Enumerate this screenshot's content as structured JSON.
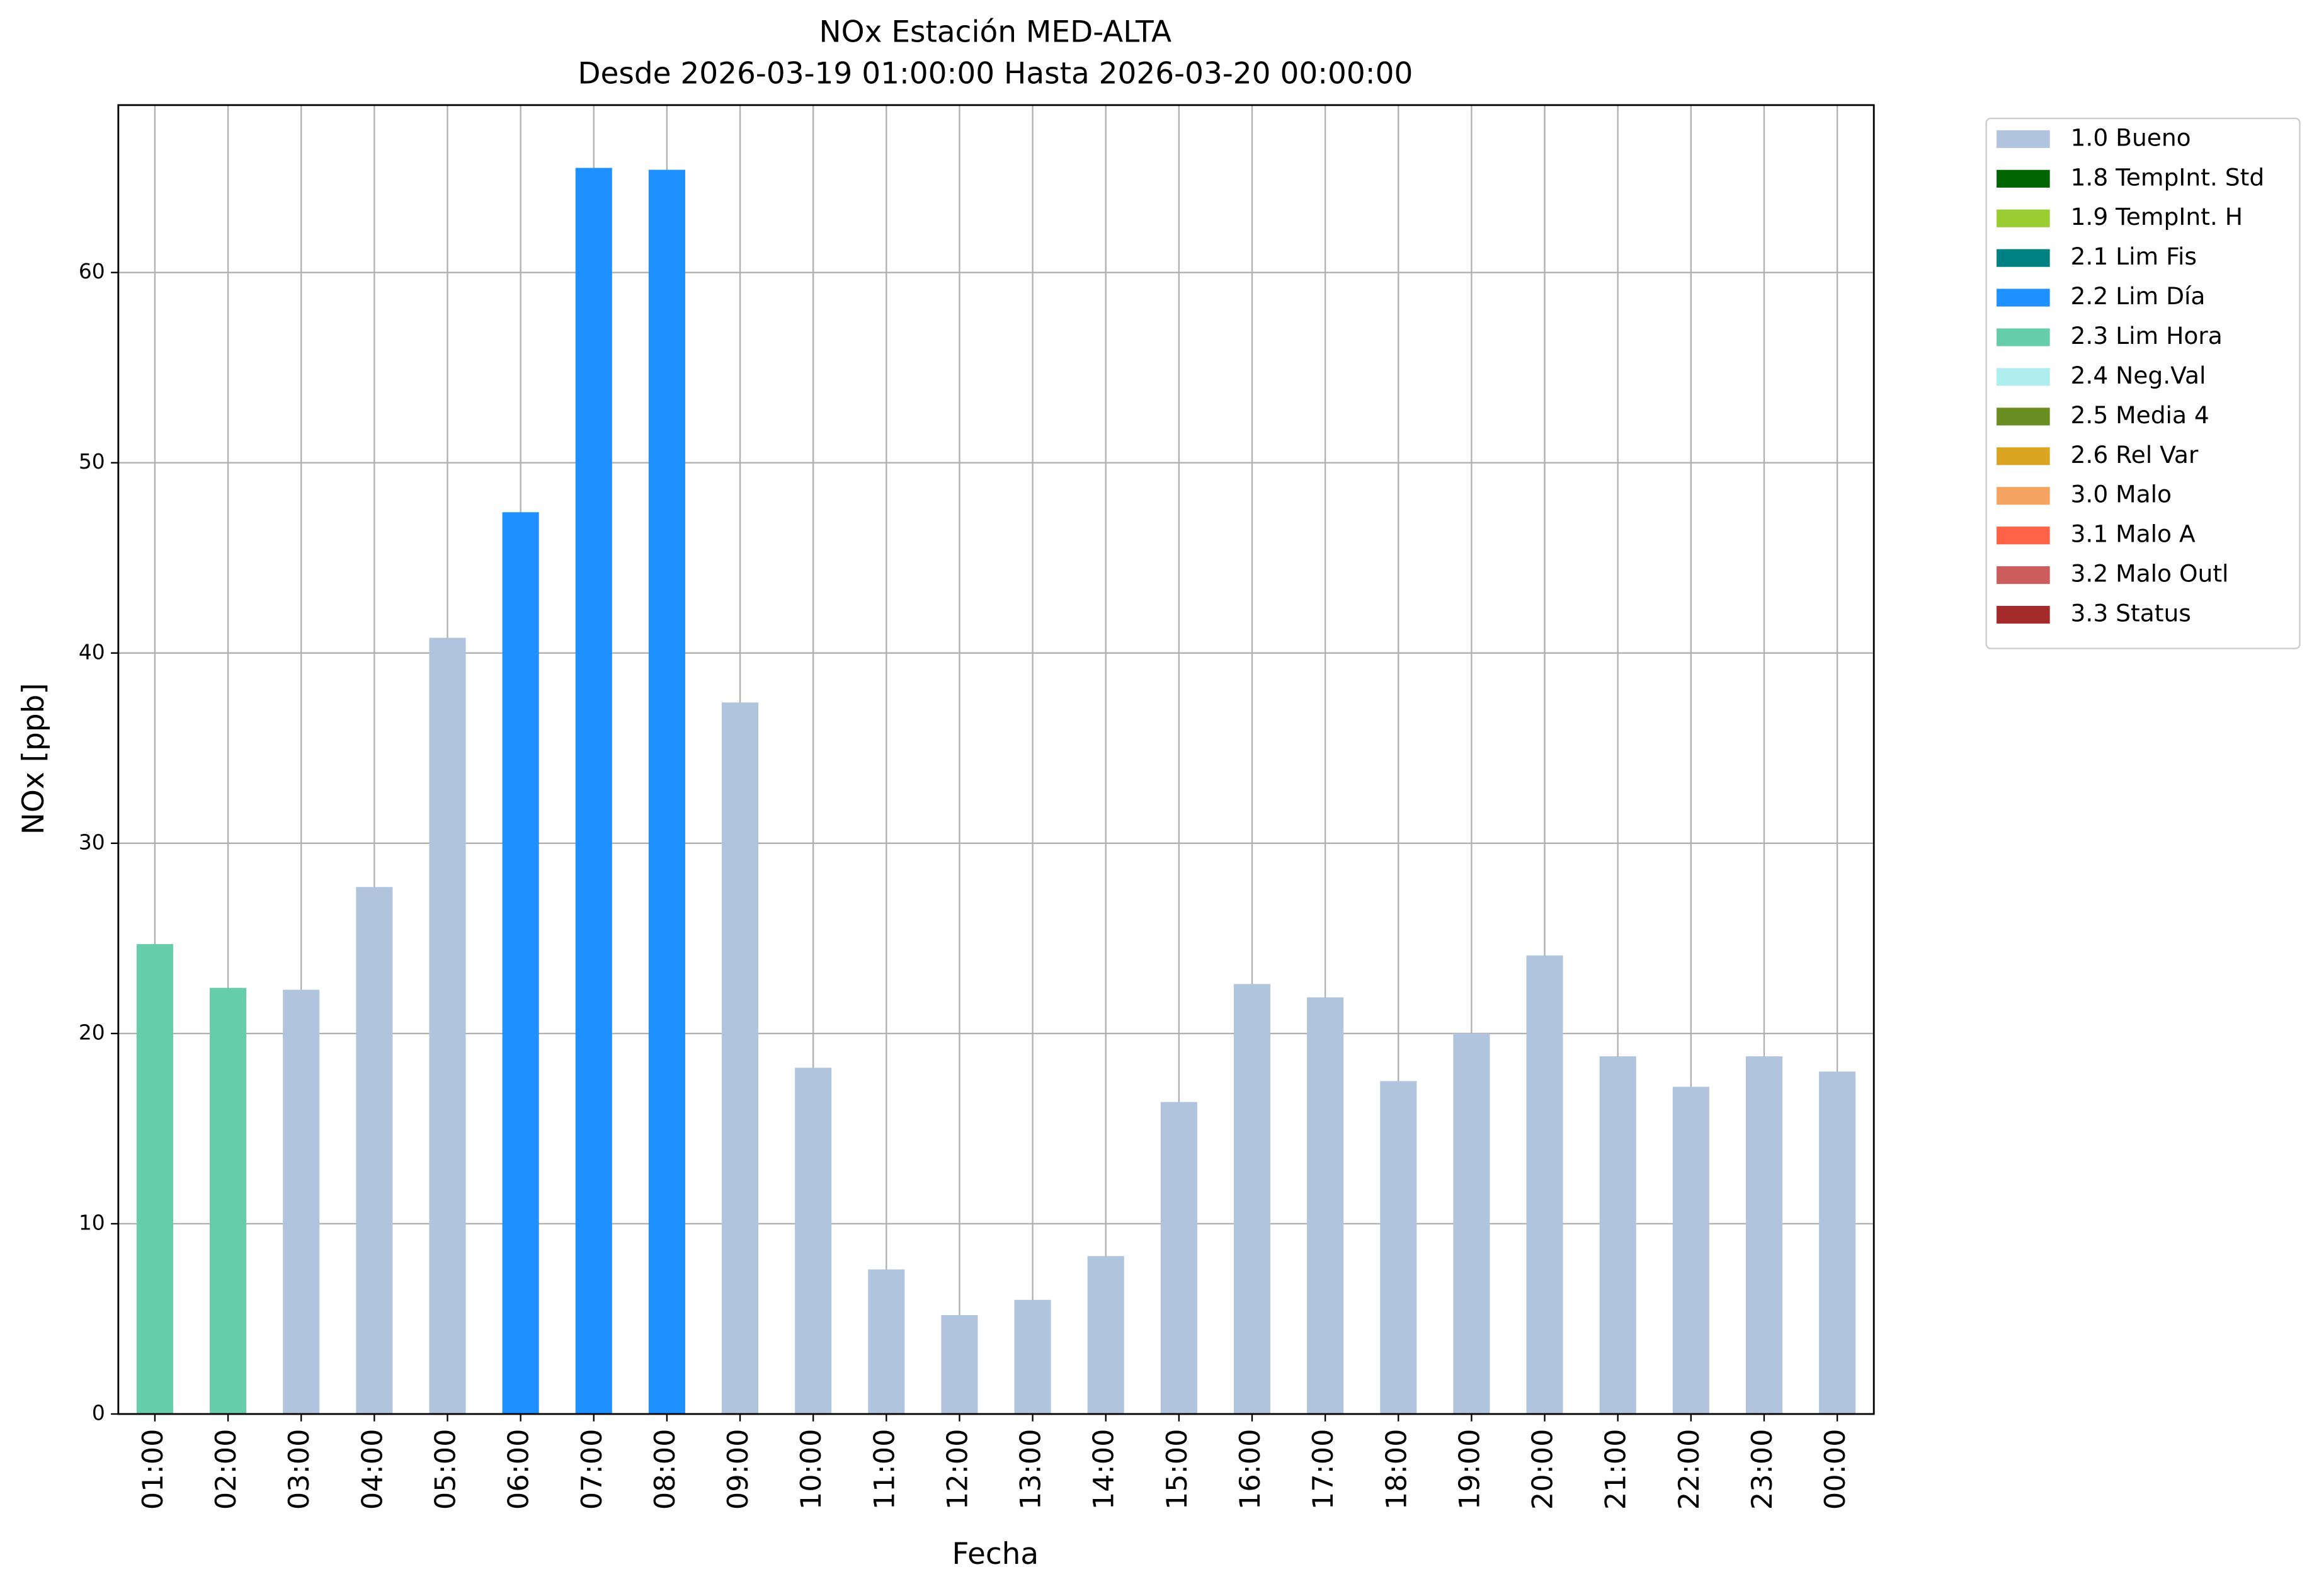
{
  "chart_data": {
    "type": "bar",
    "stacked": true,
    "title": "NOx Estación MED-ALTA",
    "subtitle": "Desde 2026-03-19 01:00:00 Hasta 2026-03-20 00:00:00",
    "x_label": "Fecha",
    "y_label": "NOx [ppb]",
    "categories": [
      "01:00",
      "02:00",
      "03:00",
      "04:00",
      "05:00",
      "06:00",
      "07:00",
      "08:00",
      "09:00",
      "10:00",
      "11:00",
      "12:00",
      "13:00",
      "14:00",
      "15:00",
      "16:00",
      "17:00",
      "18:00",
      "19:00",
      "20:00",
      "21:00",
      "22:00",
      "23:00",
      "00:00"
    ],
    "ylim": [
      0,
      68.8
    ],
    "yticks": [
      0,
      10,
      20,
      30,
      40,
      50,
      60
    ],
    "grid": true,
    "legend": "outside right",
    "series": [
      {
        "name": "1.0 Bueno",
        "color": "#b0c4de",
        "values": [
          null,
          null,
          22.3,
          27.7,
          40.8,
          null,
          null,
          null,
          37.4,
          18.2,
          7.6,
          5.2,
          6.0,
          8.3,
          16.4,
          22.6,
          21.9,
          17.5,
          20.0,
          24.1,
          18.8,
          17.2,
          18.8,
          18.0
        ]
      },
      {
        "name": "1.8 TempInt. Std",
        "color": "#006400",
        "values": [
          null,
          null,
          null,
          null,
          null,
          null,
          null,
          null,
          null,
          null,
          null,
          null,
          null,
          null,
          null,
          null,
          null,
          null,
          null,
          null,
          null,
          null,
          null,
          null
        ]
      },
      {
        "name": "1.9 TempInt. H",
        "color": "#9acd32",
        "values": [
          null,
          null,
          null,
          null,
          null,
          null,
          null,
          null,
          null,
          null,
          null,
          null,
          null,
          null,
          null,
          null,
          null,
          null,
          null,
          null,
          null,
          null,
          null,
          null
        ]
      },
      {
        "name": "2.1 Lim Fis",
        "color": "#008080",
        "values": [
          null,
          null,
          null,
          null,
          null,
          null,
          null,
          null,
          null,
          null,
          null,
          null,
          null,
          null,
          null,
          null,
          null,
          null,
          null,
          null,
          null,
          null,
          null,
          null
        ]
      },
      {
        "name": "2.2 Lim Día",
        "color": "#1e90ff",
        "values": [
          null,
          null,
          null,
          null,
          null,
          47.4,
          65.5,
          65.4,
          null,
          null,
          null,
          null,
          null,
          null,
          null,
          null,
          null,
          null,
          null,
          null,
          null,
          null,
          null,
          null
        ]
      },
      {
        "name": "2.3 Lim Hora",
        "color": "#66cdaa",
        "values": [
          24.7,
          22.4,
          null,
          null,
          null,
          null,
          null,
          null,
          null,
          null,
          null,
          null,
          null,
          null,
          null,
          null,
          null,
          null,
          null,
          null,
          null,
          null,
          null,
          null
        ]
      },
      {
        "name": "2.4 Neg.Val",
        "color": "#afeeee",
        "values": [
          null,
          null,
          null,
          null,
          null,
          null,
          null,
          null,
          null,
          null,
          null,
          null,
          null,
          null,
          null,
          null,
          null,
          null,
          null,
          null,
          null,
          null,
          null,
          null
        ]
      },
      {
        "name": "2.5 Media 4",
        "color": "#6b8e23",
        "values": [
          null,
          null,
          null,
          null,
          null,
          null,
          null,
          null,
          null,
          null,
          null,
          null,
          null,
          null,
          null,
          null,
          null,
          null,
          null,
          null,
          null,
          null,
          null,
          null
        ]
      },
      {
        "name": "2.6 Rel Var",
        "color": "#daa520",
        "values": [
          null,
          null,
          null,
          null,
          null,
          null,
          null,
          null,
          null,
          null,
          null,
          null,
          null,
          null,
          null,
          null,
          null,
          null,
          null,
          null,
          null,
          null,
          null,
          null
        ]
      },
      {
        "name": "3.0 Malo",
        "color": "#f4a460",
        "values": [
          null,
          null,
          null,
          null,
          null,
          null,
          null,
          null,
          null,
          null,
          null,
          null,
          null,
          null,
          null,
          null,
          null,
          null,
          null,
          null,
          null,
          null,
          null,
          null
        ]
      },
      {
        "name": "3.1 Malo A",
        "color": "#ff6347",
        "values": [
          null,
          null,
          null,
          null,
          null,
          null,
          null,
          null,
          null,
          null,
          null,
          null,
          null,
          null,
          null,
          null,
          null,
          null,
          null,
          null,
          null,
          null,
          null,
          null
        ]
      },
      {
        "name": "3.2 Malo Outl",
        "color": "#cd5c5c",
        "values": [
          null,
          null,
          null,
          null,
          null,
          null,
          null,
          null,
          null,
          null,
          null,
          null,
          null,
          null,
          null,
          null,
          null,
          null,
          null,
          null,
          null,
          null,
          null,
          null
        ]
      },
      {
        "name": "3.3 Status",
        "color": "#a52a2a",
        "values": [
          null,
          null,
          null,
          null,
          null,
          null,
          null,
          null,
          null,
          null,
          null,
          null,
          null,
          null,
          null,
          null,
          null,
          null,
          null,
          null,
          null,
          null,
          null,
          null
        ]
      }
    ]
  }
}
